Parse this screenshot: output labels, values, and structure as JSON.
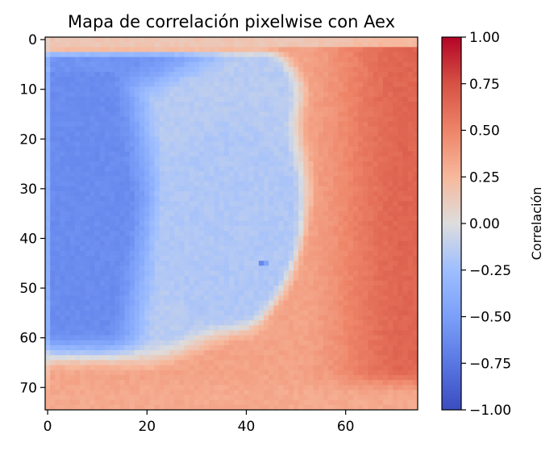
{
  "chart_data": {
    "type": "heatmap",
    "title": "Mapa de correlación pixelwise con Aex",
    "xlabel": "",
    "ylabel": "",
    "grid": false,
    "colormap": "coolwarm",
    "x_range": [
      -0.5,
      74.5
    ],
    "y_range": [
      74.5,
      -0.5
    ],
    "x_ticks": [
      0,
      20,
      40,
      60
    ],
    "y_ticks": [
      0,
      10,
      20,
      30,
      40,
      50,
      60,
      70
    ],
    "colorbar": {
      "label": "Correlación",
      "vmin": -1.0,
      "vmax": 1.0,
      "ticks": [
        1.0,
        0.75,
        0.5,
        0.25,
        0.0,
        -0.25,
        -0.5,
        -0.75,
        -1.0
      ],
      "tick_labels": [
        "1.00",
        "0.75",
        "0.50",
        "0.25",
        "0.00",
        "−0.25",
        "−0.50",
        "−0.75",
        "−1.00"
      ]
    },
    "grid_size": [
      75,
      75
    ],
    "approx_regions": [
      {
        "region": "left crescent (cols 0-20, rows 5-65)",
        "value": -0.62
      },
      {
        "region": "central disc (cols 20-50, rows 15-60)",
        "value": -0.15
      },
      {
        "region": "right side (cols 55-74)",
        "value": 0.6
      },
      {
        "region": "bottom band (rows 62-74)",
        "value": 0.35
      },
      {
        "region": "top-right corner",
        "value": 0.5
      },
      {
        "region": "outlier pixel (col 43, row 45)",
        "value": -0.65
      }
    ]
  },
  "colors": {
    "cold_end": "#3b4cc0",
    "neutral": "#dddddd",
    "warm_end": "#b40426"
  }
}
